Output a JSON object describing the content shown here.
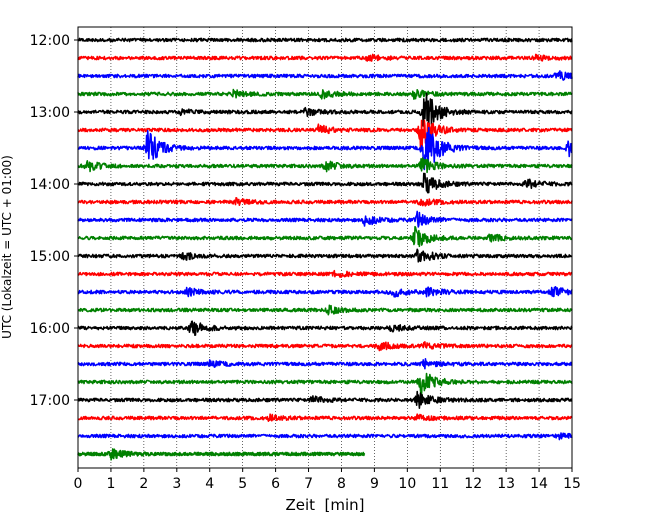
{
  "chart_data": {
    "type": "line",
    "title": "",
    "xlabel": "Zeit  [min]",
    "ylabel": "UTC (Lokalzeit = UTC + 01:00)",
    "xlim": [
      0,
      15
    ],
    "x_ticks": [
      0,
      1,
      2,
      3,
      4,
      5,
      6,
      7,
      8,
      9,
      10,
      11,
      12,
      13,
      14,
      15
    ],
    "y_tick_labels": [
      "12:00",
      "13:00",
      "14:00",
      "15:00",
      "16:00",
      "17:00"
    ],
    "trace_interval_min": 15,
    "trace_colors": [
      "#000000",
      "#ff0000",
      "#0000ff",
      "#008000"
    ],
    "grid": "vertical dotted",
    "traces": [
      {
        "start": "12:00",
        "color": "#000000",
        "end_min": 15,
        "events": []
      },
      {
        "start": "12:15",
        "color": "#ff0000",
        "end_min": 15,
        "events": [
          {
            "t": 8.8,
            "amp": 0.35
          },
          {
            "t": 13.9,
            "amp": 0.25
          }
        ]
      },
      {
        "start": "12:30",
        "color": "#0000ff",
        "end_min": 15,
        "events": [
          {
            "t": 14.5,
            "amp": 0.6
          }
        ]
      },
      {
        "start": "12:45",
        "color": "#008000",
        "end_min": 15,
        "events": [
          {
            "t": 4.7,
            "amp": 0.4
          },
          {
            "t": 7.4,
            "amp": 0.5
          },
          {
            "t": 10.2,
            "amp": 0.5
          }
        ]
      },
      {
        "start": "13:00",
        "color": "#000000",
        "end_min": 15,
        "events": [
          {
            "t": 3.1,
            "amp": 0.3
          },
          {
            "t": 6.9,
            "amp": 0.4
          },
          {
            "t": 10.5,
            "amp": 2.5
          }
        ]
      },
      {
        "start": "13:15",
        "color": "#ff0000",
        "end_min": 15,
        "events": [
          {
            "t": 7.3,
            "amp": 0.5
          },
          {
            "t": 10.4,
            "amp": 2.0
          }
        ]
      },
      {
        "start": "13:30",
        "color": "#0000ff",
        "end_min": 15,
        "events": [
          {
            "t": 2.1,
            "amp": 2.0
          },
          {
            "t": 10.5,
            "amp": 3.5
          },
          {
            "t": 14.9,
            "amp": 1.0
          }
        ]
      },
      {
        "start": "13:45",
        "color": "#008000",
        "end_min": 15,
        "events": [
          {
            "t": 0.2,
            "amp": 0.7
          },
          {
            "t": 7.5,
            "amp": 0.6
          },
          {
            "t": 10.4,
            "amp": 1.0
          }
        ]
      },
      {
        "start": "14:00",
        "color": "#000000",
        "end_min": 15,
        "events": [
          {
            "t": 10.5,
            "amp": 1.2
          },
          {
            "t": 13.6,
            "amp": 0.5
          }
        ]
      },
      {
        "start": "14:15",
        "color": "#ff0000",
        "end_min": 15,
        "events": [
          {
            "t": 4.8,
            "amp": 0.3
          },
          {
            "t": 10.4,
            "amp": 0.4
          }
        ]
      },
      {
        "start": "14:30",
        "color": "#0000ff",
        "end_min": 15,
        "events": [
          {
            "t": 8.7,
            "amp": 0.6
          },
          {
            "t": 10.3,
            "amp": 0.8
          }
        ]
      },
      {
        "start": "14:45",
        "color": "#008000",
        "end_min": 15,
        "events": [
          {
            "t": 10.2,
            "amp": 1.3
          },
          {
            "t": 12.5,
            "amp": 0.4
          }
        ]
      },
      {
        "start": "15:00",
        "color": "#000000",
        "end_min": 15,
        "events": [
          {
            "t": 3.2,
            "amp": 0.4
          },
          {
            "t": 10.3,
            "amp": 0.9
          }
        ]
      },
      {
        "start": "15:15",
        "color": "#ff0000",
        "end_min": 15,
        "events": [
          {
            "t": 7.8,
            "amp": 0.3
          }
        ]
      },
      {
        "start": "15:30",
        "color": "#0000ff",
        "end_min": 15,
        "events": [
          {
            "t": 3.3,
            "amp": 0.4
          },
          {
            "t": 9.5,
            "amp": 0.6
          },
          {
            "t": 10.6,
            "amp": 0.5
          },
          {
            "t": 14.4,
            "amp": 0.6
          }
        ]
      },
      {
        "start": "15:45",
        "color": "#008000",
        "end_min": 15,
        "events": [
          {
            "t": 7.6,
            "amp": 0.4
          }
        ]
      },
      {
        "start": "16:00",
        "color": "#000000",
        "end_min": 15,
        "events": [
          {
            "t": 3.4,
            "amp": 1.0
          },
          {
            "t": 9.5,
            "amp": 0.4
          }
        ]
      },
      {
        "start": "16:15",
        "color": "#ff0000",
        "end_min": 15,
        "events": [
          {
            "t": 9.1,
            "amp": 0.5
          },
          {
            "t": 10.5,
            "amp": 0.3
          }
        ]
      },
      {
        "start": "16:30",
        "color": "#0000ff",
        "end_min": 15,
        "events": [
          {
            "t": 4.0,
            "amp": 0.3
          },
          {
            "t": 10.5,
            "amp": 0.5
          }
        ]
      },
      {
        "start": "16:45",
        "color": "#008000",
        "end_min": 15,
        "events": [
          {
            "t": 10.4,
            "amp": 1.6
          }
        ]
      },
      {
        "start": "17:00",
        "color": "#000000",
        "end_min": 15,
        "events": [
          {
            "t": 7.1,
            "amp": 0.4
          },
          {
            "t": 10.3,
            "amp": 0.9
          }
        ]
      },
      {
        "start": "17:15",
        "color": "#ff0000",
        "end_min": 15,
        "events": [
          {
            "t": 5.8,
            "amp": 0.3
          },
          {
            "t": 10.3,
            "amp": 0.3
          }
        ]
      },
      {
        "start": "17:30",
        "color": "#0000ff",
        "end_min": 15,
        "events": [
          {
            "t": 14.6,
            "amp": 0.3
          }
        ]
      },
      {
        "start": "17:45",
        "color": "#008000",
        "end_min": 8.7,
        "events": [
          {
            "t": 1.0,
            "amp": 0.5
          }
        ]
      }
    ]
  }
}
